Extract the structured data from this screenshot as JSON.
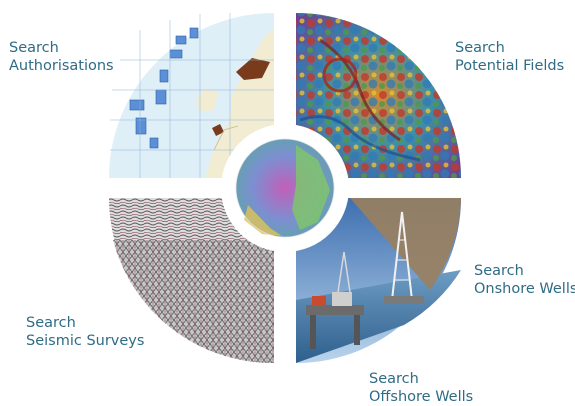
{
  "menu": {
    "authorisations": {
      "line1": "Search",
      "line2": "Authorisations"
    },
    "potential_fields": {
      "line1": "Search",
      "line2": "Potential Fields"
    },
    "seismic_surveys": {
      "line1": "Search",
      "line2": "Seismic Surveys"
    },
    "onshore_wells": {
      "line1": "Search",
      "line2": "Onshore Wells"
    },
    "offshore_wells": {
      "line1": "Search",
      "line2": "Offshore Wells"
    }
  },
  "colors": {
    "label_text": "#2f6c86",
    "map_sea": "#dfeff7",
    "map_land": "#f2ecd2",
    "authorisation_blocks": "#5b8fd6",
    "onshore_patch": "#7a3b1c"
  }
}
